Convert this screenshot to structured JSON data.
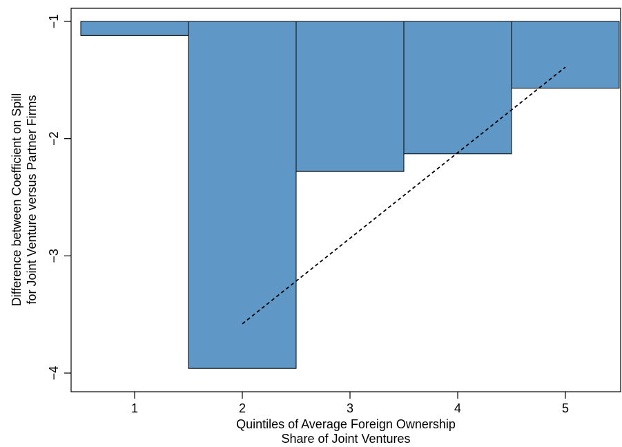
{
  "chart_data": {
    "type": "bar",
    "categories": [
      "1",
      "2",
      "3",
      "4",
      "5"
    ],
    "values": [
      -1.12,
      -3.96,
      -2.28,
      -2.13,
      -1.57
    ],
    "baseline": -1,
    "xlabel_line1": "Quintiles of Average Foreign Ownership",
    "xlabel_line2": "Share of Joint Ventures",
    "ylabel_line1": "Difference between Coefficient on Spill",
    "ylabel_line2": "for Joint Venture versus Partner Firms",
    "x_ticks": [
      "1",
      "2",
      "3",
      "4",
      "5"
    ],
    "y_ticks": [
      "-1",
      "-2",
      "-3",
      "-4"
    ],
    "ylim": [
      -4.1,
      -0.9
    ],
    "xlim": [
      0.5,
      5.5
    ],
    "bar_color": "#5f97c6",
    "bar_edge_color": "#000000",
    "trend_line": {
      "style": "dashed",
      "x": [
        2,
        5
      ],
      "y": [
        -3.58,
        -1.39
      ]
    },
    "grid": false
  }
}
